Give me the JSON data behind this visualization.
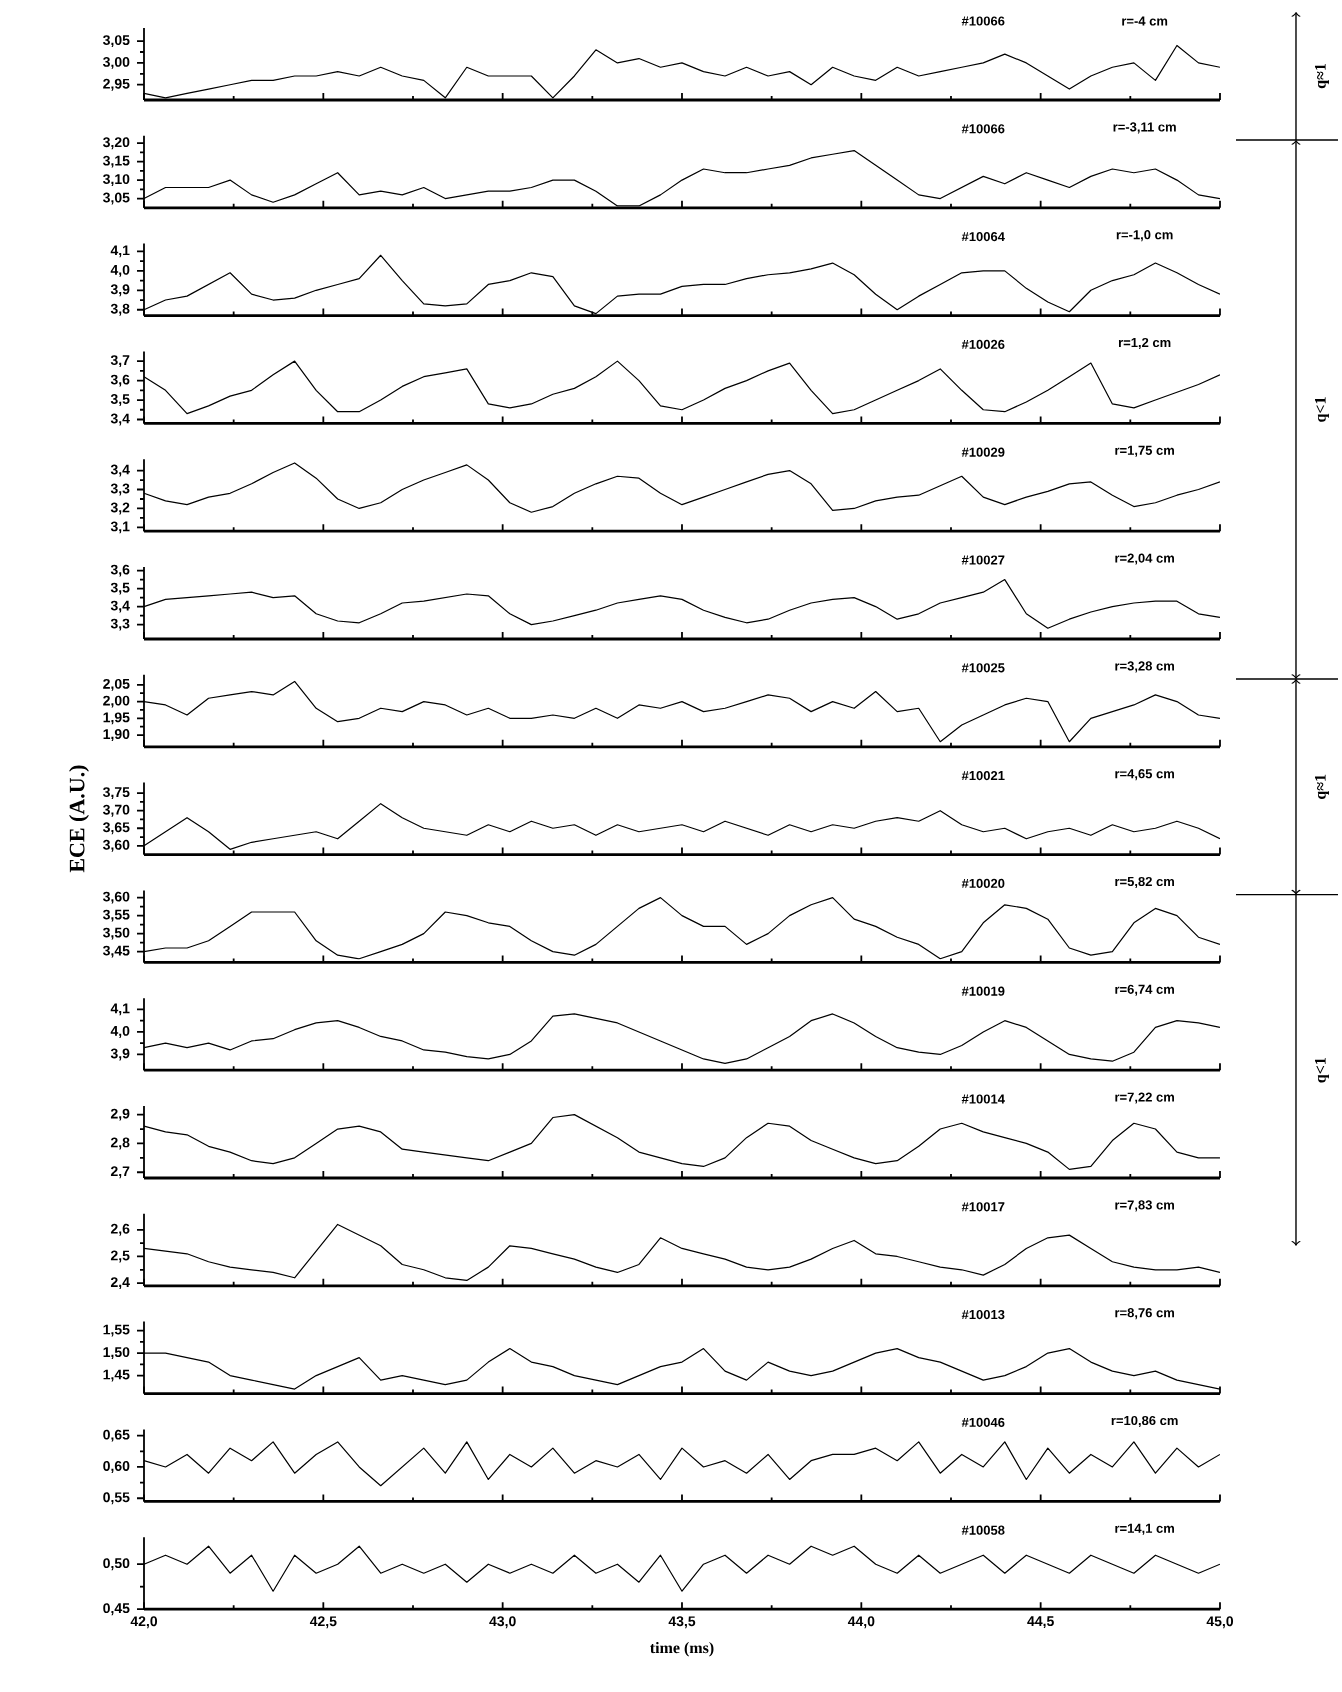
{
  "chart_data": [
    {
      "type": "line",
      "color": "#000000",
      "annotations": [
        "#10066",
        "r=-4 cm",
        "q≈1"
      ],
      "tick_labels": "y",
      "xlim": [
        42,
        45
      ],
      "xticks": [
        {
          "value": 42,
          "label": null
        },
        {
          "value": 42.5,
          "label": null
        },
        {
          "value": 43,
          "label": null
        },
        {
          "value": 43.5,
          "label": null
        },
        {
          "value": 44,
          "label": null
        },
        {
          "value": 44.5,
          "label": null
        },
        {
          "value": 45,
          "label": null
        }
      ],
      "ylim": [
        2.915,
        3.08
      ],
      "yticks": [
        {
          "value": 2.95,
          "label": "2,95"
        },
        {
          "value": 3.0,
          "label": "3,00"
        },
        {
          "value": 3.05,
          "label": "3,05"
        }
      ],
      "x": [
        42,
        42.06,
        42.12,
        42.18,
        42.24,
        42.3,
        42.36,
        42.42,
        42.48,
        42.54,
        42.6,
        42.66,
        42.72,
        42.78,
        42.84,
        42.9,
        42.96,
        43.02,
        43.08,
        43.14,
        43.2,
        43.26,
        43.32,
        43.38,
        43.44,
        43.5,
        43.56,
        43.62,
        43.68,
        43.74,
        43.8,
        43.86,
        43.92,
        43.98,
        44.04,
        44.1,
        44.16,
        44.22,
        44.28,
        44.34,
        44.4,
        44.46,
        44.52,
        44.58,
        44.64,
        44.7,
        44.76,
        44.82,
        44.88,
        44.94,
        45
      ],
      "values": [
        2.93,
        2.92,
        2.93,
        2.94,
        2.95,
        2.96,
        2.96,
        2.97,
        2.97,
        2.98,
        2.97,
        2.99,
        2.97,
        2.96,
        2.92,
        2.99,
        2.97,
        2.97,
        2.97,
        2.92,
        2.97,
        3.03,
        3.0,
        3.01,
        2.99,
        3.0,
        2.98,
        2.97,
        2.99,
        2.97,
        2.98,
        2.95,
        2.99,
        2.97,
        2.96,
        2.99,
        2.97,
        2.98,
        2.99,
        3.0,
        3.02,
        3.0,
        2.97,
        2.94,
        2.97,
        2.99,
        3.0,
        2.96,
        3.04,
        3.0,
        2.99
      ]
    },
    {
      "type": "line",
      "color": "#000000",
      "annotations": [
        "#10066",
        "r=-3,11 cm",
        "q<1"
      ],
      "tick_labels": "y",
      "xlim": [
        42,
        45
      ],
      "xticks": [
        {
          "value": 42,
          "label": null
        },
        {
          "value": 42.5,
          "label": null
        },
        {
          "value": 43,
          "label": null
        },
        {
          "value": 43.5,
          "label": null
        },
        {
          "value": 44,
          "label": null
        },
        {
          "value": 44.5,
          "label": null
        },
        {
          "value": 45,
          "label": null
        }
      ],
      "ylim": [
        3.025,
        3.22
      ],
      "yticks": [
        {
          "value": 3.05,
          "label": "3,05"
        },
        {
          "value": 3.1,
          "label": "3,10"
        },
        {
          "value": 3.15,
          "label": "3,15"
        },
        {
          "value": 3.2,
          "label": "3,20"
        }
      ],
      "x": [
        42,
        42.06,
        42.12,
        42.18,
        42.24,
        42.3,
        42.36,
        42.42,
        42.48,
        42.54,
        42.6,
        42.66,
        42.72,
        42.78,
        42.84,
        42.9,
        42.96,
        43.02,
        43.08,
        43.14,
        43.2,
        43.26,
        43.32,
        43.38,
        43.44,
        43.5,
        43.56,
        43.62,
        43.68,
        43.74,
        43.8,
        43.86,
        43.92,
        43.98,
        44.04,
        44.1,
        44.16,
        44.22,
        44.28,
        44.34,
        44.4,
        44.46,
        44.52,
        44.58,
        44.64,
        44.7,
        44.76,
        44.82,
        44.88,
        44.94,
        45
      ],
      "values": [
        3.05,
        3.08,
        3.08,
        3.08,
        3.1,
        3.06,
        3.04,
        3.06,
        3.09,
        3.12,
        3.06,
        3.07,
        3.06,
        3.08,
        3.05,
        3.06,
        3.07,
        3.07,
        3.08,
        3.1,
        3.1,
        3.07,
        3.03,
        3.03,
        3.06,
        3.1,
        3.13,
        3.12,
        3.12,
        3.13,
        3.14,
        3.16,
        3.17,
        3.18,
        3.14,
        3.1,
        3.06,
        3.05,
        3.08,
        3.11,
        3.09,
        3.12,
        3.1,
        3.08,
        3.11,
        3.13,
        3.12,
        3.13,
        3.1,
        3.06,
        3.05
      ]
    },
    {
      "type": "line",
      "color": "#000000",
      "annotations": [
        "#10064",
        "r=-1,0 cm"
      ],
      "tick_labels": "y",
      "xlim": [
        42,
        45
      ],
      "xticks": [
        {
          "value": 42,
          "label": null
        },
        {
          "value": 42.5,
          "label": null
        },
        {
          "value": 43,
          "label": null
        },
        {
          "value": 43.5,
          "label": null
        },
        {
          "value": 44,
          "label": null
        },
        {
          "value": 44.5,
          "label": null
        },
        {
          "value": 45,
          "label": null
        }
      ],
      "ylim": [
        3.77,
        4.14
      ],
      "yticks": [
        {
          "value": 3.8,
          "label": "3,8"
        },
        {
          "value": 3.9,
          "label": "3,9"
        },
        {
          "value": 4.0,
          "label": "4,0"
        },
        {
          "value": 4.1,
          "label": "4,1"
        }
      ],
      "x": [
        42,
        42.06,
        42.12,
        42.18,
        42.24,
        42.3,
        42.36,
        42.42,
        42.48,
        42.54,
        42.6,
        42.66,
        42.72,
        42.78,
        42.84,
        42.9,
        42.96,
        43.02,
        43.08,
        43.14,
        43.2,
        43.26,
        43.32,
        43.38,
        43.44,
        43.5,
        43.56,
        43.62,
        43.68,
        43.74,
        43.8,
        43.86,
        43.92,
        43.98,
        44.04,
        44.1,
        44.16,
        44.22,
        44.28,
        44.34,
        44.4,
        44.46,
        44.52,
        44.58,
        44.64,
        44.7,
        44.76,
        44.82,
        44.88,
        44.94,
        45
      ],
      "values": [
        3.8,
        3.85,
        3.87,
        3.93,
        3.99,
        3.88,
        3.85,
        3.86,
        3.9,
        3.93,
        3.96,
        4.08,
        3.95,
        3.83,
        3.82,
        3.83,
        3.93,
        3.95,
        3.99,
        3.97,
        3.82,
        3.78,
        3.87,
        3.88,
        3.88,
        3.92,
        3.93,
        3.93,
        3.96,
        3.98,
        3.99,
        4.01,
        4.04,
        3.98,
        3.88,
        3.8,
        3.87,
        3.93,
        3.99,
        4.0,
        4.0,
        3.91,
        3.84,
        3.79,
        3.9,
        3.95,
        3.98,
        4.04,
        3.99,
        3.93,
        3.88
      ]
    },
    {
      "type": "line",
      "color": "#000000",
      "annotations": [
        "#10026",
        "r=1,2 cm"
      ],
      "tick_labels": "y",
      "xlim": [
        42,
        45
      ],
      "xticks": [
        {
          "value": 42,
          "label": null
        },
        {
          "value": 42.5,
          "label": null
        },
        {
          "value": 43,
          "label": null
        },
        {
          "value": 43.5,
          "label": null
        },
        {
          "value": 44,
          "label": null
        },
        {
          "value": 44.5,
          "label": null
        },
        {
          "value": 45,
          "label": null
        }
      ],
      "ylim": [
        3.38,
        3.75
      ],
      "yticks": [
        {
          "value": 3.4,
          "label": "3,4"
        },
        {
          "value": 3.5,
          "label": "3,5"
        },
        {
          "value": 3.6,
          "label": "3,6"
        },
        {
          "value": 3.7,
          "label": "3,7"
        }
      ],
      "x": [
        42,
        42.06,
        42.12,
        42.18,
        42.24,
        42.3,
        42.36,
        42.42,
        42.48,
        42.54,
        42.6,
        42.66,
        42.72,
        42.78,
        42.84,
        42.9,
        42.96,
        43.02,
        43.08,
        43.14,
        43.2,
        43.26,
        43.32,
        43.38,
        43.44,
        43.5,
        43.56,
        43.62,
        43.68,
        43.74,
        43.8,
        43.86,
        43.92,
        43.98,
        44.04,
        44.1,
        44.16,
        44.22,
        44.28,
        44.34,
        44.4,
        44.46,
        44.52,
        44.58,
        44.64,
        44.7,
        44.76,
        44.82,
        44.88,
        44.94,
        45
      ],
      "values": [
        3.62,
        3.55,
        3.43,
        3.47,
        3.52,
        3.55,
        3.63,
        3.7,
        3.55,
        3.44,
        3.44,
        3.5,
        3.57,
        3.62,
        3.64,
        3.66,
        3.48,
        3.46,
        3.48,
        3.53,
        3.56,
        3.62,
        3.7,
        3.6,
        3.47,
        3.45,
        3.5,
        3.56,
        3.6,
        3.65,
        3.69,
        3.55,
        3.43,
        3.45,
        3.5,
        3.55,
        3.6,
        3.66,
        3.55,
        3.45,
        3.44,
        3.49,
        3.55,
        3.62,
        3.69,
        3.48,
        3.46,
        3.5,
        3.54,
        3.58,
        3.63
      ]
    },
    {
      "type": "line",
      "color": "#000000",
      "annotations": [
        "#10029",
        "r=1,75 cm"
      ],
      "tick_labels": "y",
      "xlim": [
        42,
        45
      ],
      "xticks": [
        {
          "value": 42,
          "label": null
        },
        {
          "value": 42.5,
          "label": null
        },
        {
          "value": 43,
          "label": null
        },
        {
          "value": 43.5,
          "label": null
        },
        {
          "value": 44,
          "label": null
        },
        {
          "value": 44.5,
          "label": null
        },
        {
          "value": 45,
          "label": null
        }
      ],
      "ylim": [
        3.08,
        3.46
      ],
      "yticks": [
        {
          "value": 3.1,
          "label": "3,1"
        },
        {
          "value": 3.2,
          "label": "3,2"
        },
        {
          "value": 3.3,
          "label": "3,3"
        },
        {
          "value": 3.4,
          "label": "3,4"
        }
      ],
      "x": [
        42,
        42.06,
        42.12,
        42.18,
        42.24,
        42.3,
        42.36,
        42.42,
        42.48,
        42.54,
        42.6,
        42.66,
        42.72,
        42.78,
        42.84,
        42.9,
        42.96,
        43.02,
        43.08,
        43.14,
        43.2,
        43.26,
        43.32,
        43.38,
        43.44,
        43.5,
        43.56,
        43.62,
        43.68,
        43.74,
        43.8,
        43.86,
        43.92,
        43.98,
        44.04,
        44.1,
        44.16,
        44.22,
        44.28,
        44.34,
        44.4,
        44.46,
        44.52,
        44.58,
        44.64,
        44.7,
        44.76,
        44.82,
        44.88,
        44.94,
        45
      ],
      "values": [
        3.28,
        3.24,
        3.22,
        3.26,
        3.28,
        3.33,
        3.39,
        3.44,
        3.36,
        3.25,
        3.2,
        3.23,
        3.3,
        3.35,
        3.39,
        3.43,
        3.35,
        3.23,
        3.18,
        3.21,
        3.28,
        3.33,
        3.37,
        3.36,
        3.28,
        3.22,
        3.26,
        3.3,
        3.34,
        3.38,
        3.4,
        3.33,
        3.19,
        3.2,
        3.24,
        3.26,
        3.27,
        3.32,
        3.37,
        3.26,
        3.22,
        3.26,
        3.29,
        3.33,
        3.34,
        3.27,
        3.21,
        3.23,
        3.27,
        3.3,
        3.34
      ]
    },
    {
      "type": "line",
      "color": "#000000",
      "annotations": [
        "#10027",
        "r=2,04 cm"
      ],
      "tick_labels": "y",
      "xlim": [
        42,
        45
      ],
      "xticks": [
        {
          "value": 42,
          "label": null
        },
        {
          "value": 42.5,
          "label": null
        },
        {
          "value": 43,
          "label": null
        },
        {
          "value": 43.5,
          "label": null
        },
        {
          "value": 44,
          "label": null
        },
        {
          "value": 44.5,
          "label": null
        },
        {
          "value": 45,
          "label": null
        }
      ],
      "ylim": [
        3.22,
        3.62
      ],
      "yticks": [
        {
          "value": 3.3,
          "label": "3,3"
        },
        {
          "value": 3.4,
          "label": "3,4"
        },
        {
          "value": 3.5,
          "label": "3,5"
        },
        {
          "value": 3.6,
          "label": "3,6"
        }
      ],
      "x": [
        42,
        42.06,
        42.12,
        42.18,
        42.24,
        42.3,
        42.36,
        42.42,
        42.48,
        42.54,
        42.6,
        42.66,
        42.72,
        42.78,
        42.84,
        42.9,
        42.96,
        43.02,
        43.08,
        43.14,
        43.2,
        43.26,
        43.32,
        43.38,
        43.44,
        43.5,
        43.56,
        43.62,
        43.68,
        43.74,
        43.8,
        43.86,
        43.92,
        43.98,
        44.04,
        44.1,
        44.16,
        44.22,
        44.28,
        44.34,
        44.4,
        44.46,
        44.52,
        44.58,
        44.64,
        44.7,
        44.76,
        44.82,
        44.88,
        44.94,
        45
      ],
      "values": [
        3.4,
        3.44,
        3.45,
        3.46,
        3.47,
        3.48,
        3.45,
        3.46,
        3.36,
        3.32,
        3.31,
        3.36,
        3.42,
        3.43,
        3.45,
        3.47,
        3.46,
        3.36,
        3.3,
        3.32,
        3.35,
        3.38,
        3.42,
        3.44,
        3.46,
        3.44,
        3.38,
        3.34,
        3.31,
        3.33,
        3.38,
        3.42,
        3.44,
        3.45,
        3.4,
        3.33,
        3.36,
        3.42,
        3.45,
        3.48,
        3.55,
        3.36,
        3.28,
        3.33,
        3.37,
        3.4,
        3.42,
        3.43,
        3.43,
        3.36,
        3.34
      ]
    },
    {
      "type": "line",
      "color": "#000000",
      "annotations": [
        "#10025",
        "r=3,28 cm",
        "q≈1"
      ],
      "tick_labels": "y",
      "xlim": [
        42,
        45
      ],
      "xticks": [
        {
          "value": 42,
          "label": null
        },
        {
          "value": 42.5,
          "label": null
        },
        {
          "value": 43,
          "label": null
        },
        {
          "value": 43.5,
          "label": null
        },
        {
          "value": 44,
          "label": null
        },
        {
          "value": 44.5,
          "label": null
        },
        {
          "value": 45,
          "label": null
        }
      ],
      "ylim": [
        1.865,
        2.08
      ],
      "yticks": [
        {
          "value": 1.9,
          "label": "1,90"
        },
        {
          "value": 1.95,
          "label": "1,95"
        },
        {
          "value": 2.0,
          "label": "2,00"
        },
        {
          "value": 2.05,
          "label": "2,05"
        }
      ],
      "x": [
        42,
        42.06,
        42.12,
        42.18,
        42.24,
        42.3,
        42.36,
        42.42,
        42.48,
        42.54,
        42.6,
        42.66,
        42.72,
        42.78,
        42.84,
        42.9,
        42.96,
        43.02,
        43.08,
        43.14,
        43.2,
        43.26,
        43.32,
        43.38,
        43.44,
        43.5,
        43.56,
        43.62,
        43.68,
        43.74,
        43.8,
        43.86,
        43.92,
        43.98,
        44.04,
        44.1,
        44.16,
        44.22,
        44.28,
        44.34,
        44.4,
        44.46,
        44.52,
        44.58,
        44.64,
        44.7,
        44.76,
        44.82,
        44.88,
        44.94,
        45
      ],
      "values": [
        2.0,
        1.99,
        1.96,
        2.01,
        2.02,
        2.03,
        2.02,
        2.06,
        1.98,
        1.94,
        1.95,
        1.98,
        1.97,
        2.0,
        1.99,
        1.96,
        1.98,
        1.95,
        1.95,
        1.96,
        1.95,
        1.98,
        1.95,
        1.99,
        1.98,
        2.0,
        1.97,
        1.98,
        2.0,
        2.02,
        2.01,
        1.97,
        2.0,
        1.98,
        2.03,
        1.97,
        1.98,
        1.88,
        1.93,
        1.96,
        1.99,
        2.01,
        2.0,
        1.88,
        1.95,
        1.97,
        1.99,
        2.02,
        2.0,
        1.96,
        1.95
      ]
    },
    {
      "type": "line",
      "color": "#000000",
      "annotations": [
        "#10021",
        "r=4,65 cm"
      ],
      "ylabel": "ECE (A.U.)",
      "tick_labels": "y",
      "xlim": [
        42,
        45
      ],
      "xticks": [
        {
          "value": 42,
          "label": null
        },
        {
          "value": 42.5,
          "label": null
        },
        {
          "value": 43,
          "label": null
        },
        {
          "value": 43.5,
          "label": null
        },
        {
          "value": 44,
          "label": null
        },
        {
          "value": 44.5,
          "label": null
        },
        {
          "value": 45,
          "label": null
        }
      ],
      "ylim": [
        3.575,
        3.78
      ],
      "yticks": [
        {
          "value": 3.6,
          "label": "3,60"
        },
        {
          "value": 3.65,
          "label": "3,65"
        },
        {
          "value": 3.7,
          "label": "3,70"
        },
        {
          "value": 3.75,
          "label": "3,75"
        }
      ],
      "x": [
        42,
        42.06,
        42.12,
        42.18,
        42.24,
        42.3,
        42.36,
        42.42,
        42.48,
        42.54,
        42.6,
        42.66,
        42.72,
        42.78,
        42.84,
        42.9,
        42.96,
        43.02,
        43.08,
        43.14,
        43.2,
        43.26,
        43.32,
        43.38,
        43.44,
        43.5,
        43.56,
        43.62,
        43.68,
        43.74,
        43.8,
        43.86,
        43.92,
        43.98,
        44.04,
        44.1,
        44.16,
        44.22,
        44.28,
        44.34,
        44.4,
        44.46,
        44.52,
        44.58,
        44.64,
        44.7,
        44.76,
        44.82,
        44.88,
        44.94,
        45
      ],
      "values": [
        3.6,
        3.64,
        3.68,
        3.64,
        3.59,
        3.61,
        3.62,
        3.63,
        3.64,
        3.62,
        3.67,
        3.72,
        3.68,
        3.65,
        3.64,
        3.63,
        3.66,
        3.64,
        3.67,
        3.65,
        3.66,
        3.63,
        3.66,
        3.64,
        3.65,
        3.66,
        3.64,
        3.67,
        3.65,
        3.63,
        3.66,
        3.64,
        3.66,
        3.65,
        3.67,
        3.68,
        3.67,
        3.7,
        3.66,
        3.64,
        3.65,
        3.62,
        3.64,
        3.65,
        3.63,
        3.66,
        3.64,
        3.65,
        3.67,
        3.65,
        3.62
      ]
    },
    {
      "type": "line",
      "color": "#000000",
      "annotations": [
        "#10020",
        "r=5,82 cm",
        "q<1"
      ],
      "tick_labels": "y",
      "xlim": [
        42,
        45
      ],
      "xticks": [
        {
          "value": 42,
          "label": null
        },
        {
          "value": 42.5,
          "label": null
        },
        {
          "value": 43,
          "label": null
        },
        {
          "value": 43.5,
          "label": null
        },
        {
          "value": 44,
          "label": null
        },
        {
          "value": 44.5,
          "label": null
        },
        {
          "value": 45,
          "label": null
        }
      ],
      "ylim": [
        3.42,
        3.62
      ],
      "yticks": [
        {
          "value": 3.45,
          "label": "3,45"
        },
        {
          "value": 3.5,
          "label": "3,50"
        },
        {
          "value": 3.55,
          "label": "3,55"
        },
        {
          "value": 3.6,
          "label": "3,60"
        }
      ],
      "x": [
        42,
        42.06,
        42.12,
        42.18,
        42.24,
        42.3,
        42.36,
        42.42,
        42.48,
        42.54,
        42.6,
        42.66,
        42.72,
        42.78,
        42.84,
        42.9,
        42.96,
        43.02,
        43.08,
        43.14,
        43.2,
        43.26,
        43.32,
        43.38,
        43.44,
        43.5,
        43.56,
        43.62,
        43.68,
        43.74,
        43.8,
        43.86,
        43.92,
        43.98,
        44.04,
        44.1,
        44.16,
        44.22,
        44.28,
        44.34,
        44.4,
        44.46,
        44.52,
        44.58,
        44.64,
        44.7,
        44.76,
        44.82,
        44.88,
        44.94,
        45
      ],
      "values": [
        3.45,
        3.46,
        3.46,
        3.48,
        3.52,
        3.56,
        3.56,
        3.56,
        3.48,
        3.44,
        3.43,
        3.45,
        3.47,
        3.5,
        3.56,
        3.55,
        3.53,
        3.52,
        3.48,
        3.45,
        3.44,
        3.47,
        3.52,
        3.57,
        3.6,
        3.55,
        3.52,
        3.52,
        3.47,
        3.5,
        3.55,
        3.58,
        3.6,
        3.54,
        3.52,
        3.49,
        3.47,
        3.43,
        3.45,
        3.53,
        3.58,
        3.57,
        3.54,
        3.46,
        3.44,
        3.45,
        3.53,
        3.57,
        3.55,
        3.49,
        3.47
      ]
    },
    {
      "type": "line",
      "color": "#000000",
      "annotations": [
        "#10019",
        "r=6,74 cm"
      ],
      "tick_labels": "y",
      "xlim": [
        42,
        45
      ],
      "xticks": [
        {
          "value": 42,
          "label": null
        },
        {
          "value": 42.5,
          "label": null
        },
        {
          "value": 43,
          "label": null
        },
        {
          "value": 43.5,
          "label": null
        },
        {
          "value": 44,
          "label": null
        },
        {
          "value": 44.5,
          "label": null
        },
        {
          "value": 45,
          "label": null
        }
      ],
      "ylim": [
        3.83,
        4.15
      ],
      "yticks": [
        {
          "value": 3.9,
          "label": "3,9"
        },
        {
          "value": 4.0,
          "label": "4,0"
        },
        {
          "value": 4.1,
          "label": "4,1"
        }
      ],
      "x": [
        42,
        42.06,
        42.12,
        42.18,
        42.24,
        42.3,
        42.36,
        42.42,
        42.48,
        42.54,
        42.6,
        42.66,
        42.72,
        42.78,
        42.84,
        42.9,
        42.96,
        43.02,
        43.08,
        43.14,
        43.2,
        43.26,
        43.32,
        43.38,
        43.44,
        43.5,
        43.56,
        43.62,
        43.68,
        43.74,
        43.8,
        43.86,
        43.92,
        43.98,
        44.04,
        44.1,
        44.16,
        44.22,
        44.28,
        44.34,
        44.4,
        44.46,
        44.52,
        44.58,
        44.64,
        44.7,
        44.76,
        44.82,
        44.88,
        44.94,
        45
      ],
      "values": [
        3.93,
        3.95,
        3.93,
        3.95,
        3.92,
        3.96,
        3.97,
        4.01,
        4.04,
        4.05,
        4.02,
        3.98,
        3.96,
        3.92,
        3.91,
        3.89,
        3.88,
        3.9,
        3.96,
        4.07,
        4.08,
        4.06,
        4.04,
        4.0,
        3.96,
        3.92,
        3.88,
        3.86,
        3.88,
        3.93,
        3.98,
        4.05,
        4.08,
        4.04,
        3.98,
        3.93,
        3.91,
        3.9,
        3.94,
        4.0,
        4.05,
        4.02,
        3.96,
        3.9,
        3.88,
        3.87,
        3.91,
        4.02,
        4.05,
        4.04,
        4.02
      ]
    },
    {
      "type": "line",
      "color": "#000000",
      "annotations": [
        "#10014",
        "r=7,22 cm"
      ],
      "tick_labels": "y",
      "xlim": [
        42,
        45
      ],
      "xticks": [
        {
          "value": 42,
          "label": null
        },
        {
          "value": 42.5,
          "label": null
        },
        {
          "value": 43,
          "label": null
        },
        {
          "value": 43.5,
          "label": null
        },
        {
          "value": 44,
          "label": null
        },
        {
          "value": 44.5,
          "label": null
        },
        {
          "value": 45,
          "label": null
        }
      ],
      "ylim": [
        2.68,
        2.93
      ],
      "yticks": [
        {
          "value": 2.7,
          "label": "2,7"
        },
        {
          "value": 2.8,
          "label": "2,8"
        },
        {
          "value": 2.9,
          "label": "2,9"
        }
      ],
      "x": [
        42,
        42.06,
        42.12,
        42.18,
        42.24,
        42.3,
        42.36,
        42.42,
        42.48,
        42.54,
        42.6,
        42.66,
        42.72,
        42.78,
        42.84,
        42.9,
        42.96,
        43.02,
        43.08,
        43.14,
        43.2,
        43.26,
        43.32,
        43.38,
        43.44,
        43.5,
        43.56,
        43.62,
        43.68,
        43.74,
        43.8,
        43.86,
        43.92,
        43.98,
        44.04,
        44.1,
        44.16,
        44.22,
        44.28,
        44.34,
        44.4,
        44.46,
        44.52,
        44.58,
        44.64,
        44.7,
        44.76,
        44.82,
        44.88,
        44.94,
        45
      ],
      "values": [
        2.86,
        2.84,
        2.83,
        2.79,
        2.77,
        2.74,
        2.73,
        2.75,
        2.8,
        2.85,
        2.86,
        2.84,
        2.78,
        2.77,
        2.76,
        2.75,
        2.74,
        2.77,
        2.8,
        2.89,
        2.9,
        2.86,
        2.82,
        2.77,
        2.75,
        2.73,
        2.72,
        2.75,
        2.82,
        2.87,
        2.86,
        2.81,
        2.78,
        2.75,
        2.73,
        2.74,
        2.79,
        2.85,
        2.87,
        2.84,
        2.82,
        2.8,
        2.77,
        2.71,
        2.72,
        2.81,
        2.87,
        2.85,
        2.77,
        2.75,
        2.75
      ]
    },
    {
      "type": "line",
      "color": "#000000",
      "annotations": [
        "#10017",
        "r=7,83 cm"
      ],
      "tick_labels": "y",
      "xlim": [
        42,
        45
      ],
      "xticks": [
        {
          "value": 42,
          "label": null
        },
        {
          "value": 42.5,
          "label": null
        },
        {
          "value": 43,
          "label": null
        },
        {
          "value": 43.5,
          "label": null
        },
        {
          "value": 44,
          "label": null
        },
        {
          "value": 44.5,
          "label": null
        },
        {
          "value": 45,
          "label": null
        }
      ],
      "ylim": [
        2.39,
        2.66
      ],
      "yticks": [
        {
          "value": 2.4,
          "label": "2,4"
        },
        {
          "value": 2.5,
          "label": "2,5"
        },
        {
          "value": 2.6,
          "label": "2,6"
        }
      ],
      "x": [
        42,
        42.06,
        42.12,
        42.18,
        42.24,
        42.3,
        42.36,
        42.42,
        42.48,
        42.54,
        42.6,
        42.66,
        42.72,
        42.78,
        42.84,
        42.9,
        42.96,
        43.02,
        43.08,
        43.14,
        43.2,
        43.26,
        43.32,
        43.38,
        43.44,
        43.5,
        43.56,
        43.62,
        43.68,
        43.74,
        43.8,
        43.86,
        43.92,
        43.98,
        44.04,
        44.1,
        44.16,
        44.22,
        44.28,
        44.34,
        44.4,
        44.46,
        44.52,
        44.58,
        44.64,
        44.7,
        44.76,
        44.82,
        44.88,
        44.94,
        45
      ],
      "values": [
        2.53,
        2.52,
        2.51,
        2.48,
        2.46,
        2.45,
        2.44,
        2.42,
        2.52,
        2.62,
        2.58,
        2.54,
        2.47,
        2.45,
        2.42,
        2.41,
        2.46,
        2.54,
        2.53,
        2.51,
        2.49,
        2.46,
        2.44,
        2.47,
        2.57,
        2.53,
        2.51,
        2.49,
        2.46,
        2.45,
        2.46,
        2.49,
        2.53,
        2.56,
        2.51,
        2.5,
        2.48,
        2.46,
        2.45,
        2.43,
        2.47,
        2.53,
        2.57,
        2.58,
        2.53,
        2.48,
        2.46,
        2.45,
        2.45,
        2.46,
        2.44
      ]
    },
    {
      "type": "line",
      "color": "#000000",
      "annotations": [
        "#10013",
        "r=8,76 cm"
      ],
      "tick_labels": "y",
      "xlim": [
        42,
        45
      ],
      "xticks": [
        {
          "value": 42,
          "label": null
        },
        {
          "value": 42.5,
          "label": null
        },
        {
          "value": 43,
          "label": null
        },
        {
          "value": 43.5,
          "label": null
        },
        {
          "value": 44,
          "label": null
        },
        {
          "value": 44.5,
          "label": null
        },
        {
          "value": 45,
          "label": null
        }
      ],
      "ylim": [
        1.41,
        1.57
      ],
      "yticks": [
        {
          "value": 1.45,
          "label": "1,45"
        },
        {
          "value": 1.5,
          "label": "1,50"
        },
        {
          "value": 1.55,
          "label": "1,55"
        }
      ],
      "x": [
        42,
        42.06,
        42.12,
        42.18,
        42.24,
        42.3,
        42.36,
        42.42,
        42.48,
        42.54,
        42.6,
        42.66,
        42.72,
        42.78,
        42.84,
        42.9,
        42.96,
        43.02,
        43.08,
        43.14,
        43.2,
        43.26,
        43.32,
        43.38,
        43.44,
        43.5,
        43.56,
        43.62,
        43.68,
        43.74,
        43.8,
        43.86,
        43.92,
        43.98,
        44.04,
        44.1,
        44.16,
        44.22,
        44.28,
        44.34,
        44.4,
        44.46,
        44.52,
        44.58,
        44.64,
        44.7,
        44.76,
        44.82,
        44.88,
        44.94,
        45
      ],
      "values": [
        1.5,
        1.5,
        1.49,
        1.48,
        1.45,
        1.44,
        1.43,
        1.42,
        1.45,
        1.47,
        1.49,
        1.44,
        1.45,
        1.44,
        1.43,
        1.44,
        1.48,
        1.51,
        1.48,
        1.47,
        1.45,
        1.44,
        1.43,
        1.45,
        1.47,
        1.48,
        1.51,
        1.46,
        1.44,
        1.48,
        1.46,
        1.45,
        1.46,
        1.48,
        1.5,
        1.51,
        1.49,
        1.48,
        1.46,
        1.44,
        1.45,
        1.47,
        1.5,
        1.51,
        1.48,
        1.46,
        1.45,
        1.46,
        1.44,
        1.43,
        1.42
      ]
    },
    {
      "type": "line",
      "color": "#000000",
      "annotations": [
        "#10046",
        "r=10,86 cm"
      ],
      "tick_labels": "y",
      "xlim": [
        42,
        45
      ],
      "xticks": [
        {
          "value": 42,
          "label": null
        },
        {
          "value": 42.5,
          "label": null
        },
        {
          "value": 43,
          "label": null
        },
        {
          "value": 43.5,
          "label": null
        },
        {
          "value": 44,
          "label": null
        },
        {
          "value": 44.5,
          "label": null
        },
        {
          "value": 45,
          "label": null
        }
      ],
      "ylim": [
        0.545,
        0.66
      ],
      "yticks": [
        {
          "value": 0.55,
          "label": "0,55"
        },
        {
          "value": 0.6,
          "label": "0,60"
        },
        {
          "value": 0.65,
          "label": "0,65"
        }
      ],
      "x": [
        42,
        42.06,
        42.12,
        42.18,
        42.24,
        42.3,
        42.36,
        42.42,
        42.48,
        42.54,
        42.6,
        42.66,
        42.72,
        42.78,
        42.84,
        42.9,
        42.96,
        43.02,
        43.08,
        43.14,
        43.2,
        43.26,
        43.32,
        43.38,
        43.44,
        43.5,
        43.56,
        43.62,
        43.68,
        43.74,
        43.8,
        43.86,
        43.92,
        43.98,
        44.04,
        44.1,
        44.16,
        44.22,
        44.28,
        44.34,
        44.4,
        44.46,
        44.52,
        44.58,
        44.64,
        44.7,
        44.76,
        44.82,
        44.88,
        44.94,
        45
      ],
      "values": [
        0.61,
        0.6,
        0.62,
        0.59,
        0.63,
        0.61,
        0.64,
        0.59,
        0.62,
        0.64,
        0.6,
        0.57,
        0.6,
        0.63,
        0.59,
        0.64,
        0.58,
        0.62,
        0.6,
        0.63,
        0.59,
        0.61,
        0.6,
        0.62,
        0.58,
        0.63,
        0.6,
        0.61,
        0.59,
        0.62,
        0.58,
        0.61,
        0.62,
        0.62,
        0.63,
        0.61,
        0.64,
        0.59,
        0.62,
        0.6,
        0.64,
        0.58,
        0.63,
        0.59,
        0.62,
        0.6,
        0.64,
        0.59,
        0.63,
        0.6,
        0.62
      ]
    },
    {
      "type": "line",
      "color": "#000000",
      "annotations": [
        "#10058",
        "r=14,1 cm"
      ],
      "xlabel": "time (ms)",
      "xlim": [
        42,
        45
      ],
      "xticks": [
        {
          "value": 42,
          "label": "42,0"
        },
        {
          "value": 42.5,
          "label": "42,5"
        },
        {
          "value": 43,
          "label": "43,0"
        },
        {
          "value": 43.5,
          "label": "43,5"
        },
        {
          "value": 44,
          "label": "44,0"
        },
        {
          "value": 44.5,
          "label": "44,5"
        },
        {
          "value": 45,
          "label": "45,0"
        }
      ],
      "ylim": [
        0.45,
        0.53
      ],
      "yticks": [
        {
          "value": 0.45,
          "label": "0,45"
        },
        {
          "value": 0.5,
          "label": "0,50"
        }
      ],
      "x": [
        42,
        42.06,
        42.12,
        42.18,
        42.24,
        42.3,
        42.36,
        42.42,
        42.48,
        42.54,
        42.6,
        42.66,
        42.72,
        42.78,
        42.84,
        42.9,
        42.96,
        43.02,
        43.08,
        43.14,
        43.2,
        43.26,
        43.32,
        43.38,
        43.44,
        43.5,
        43.56,
        43.62,
        43.68,
        43.74,
        43.8,
        43.86,
        43.92,
        43.98,
        44.04,
        44.1,
        44.16,
        44.22,
        44.28,
        44.34,
        44.4,
        44.46,
        44.52,
        44.58,
        44.64,
        44.7,
        44.76,
        44.82,
        44.88,
        44.94,
        45
      ],
      "values": [
        0.5,
        0.51,
        0.5,
        0.52,
        0.49,
        0.51,
        0.47,
        0.51,
        0.49,
        0.5,
        0.52,
        0.49,
        0.5,
        0.49,
        0.5,
        0.48,
        0.5,
        0.49,
        0.5,
        0.49,
        0.51,
        0.49,
        0.5,
        0.48,
        0.51,
        0.47,
        0.5,
        0.51,
        0.49,
        0.51,
        0.5,
        0.52,
        0.51,
        0.52,
        0.5,
        0.49,
        0.51,
        0.49,
        0.5,
        0.51,
        0.49,
        0.51,
        0.5,
        0.49,
        0.51,
        0.5,
        0.49,
        0.51,
        0.5,
        0.49,
        0.5
      ]
    }
  ]
}
